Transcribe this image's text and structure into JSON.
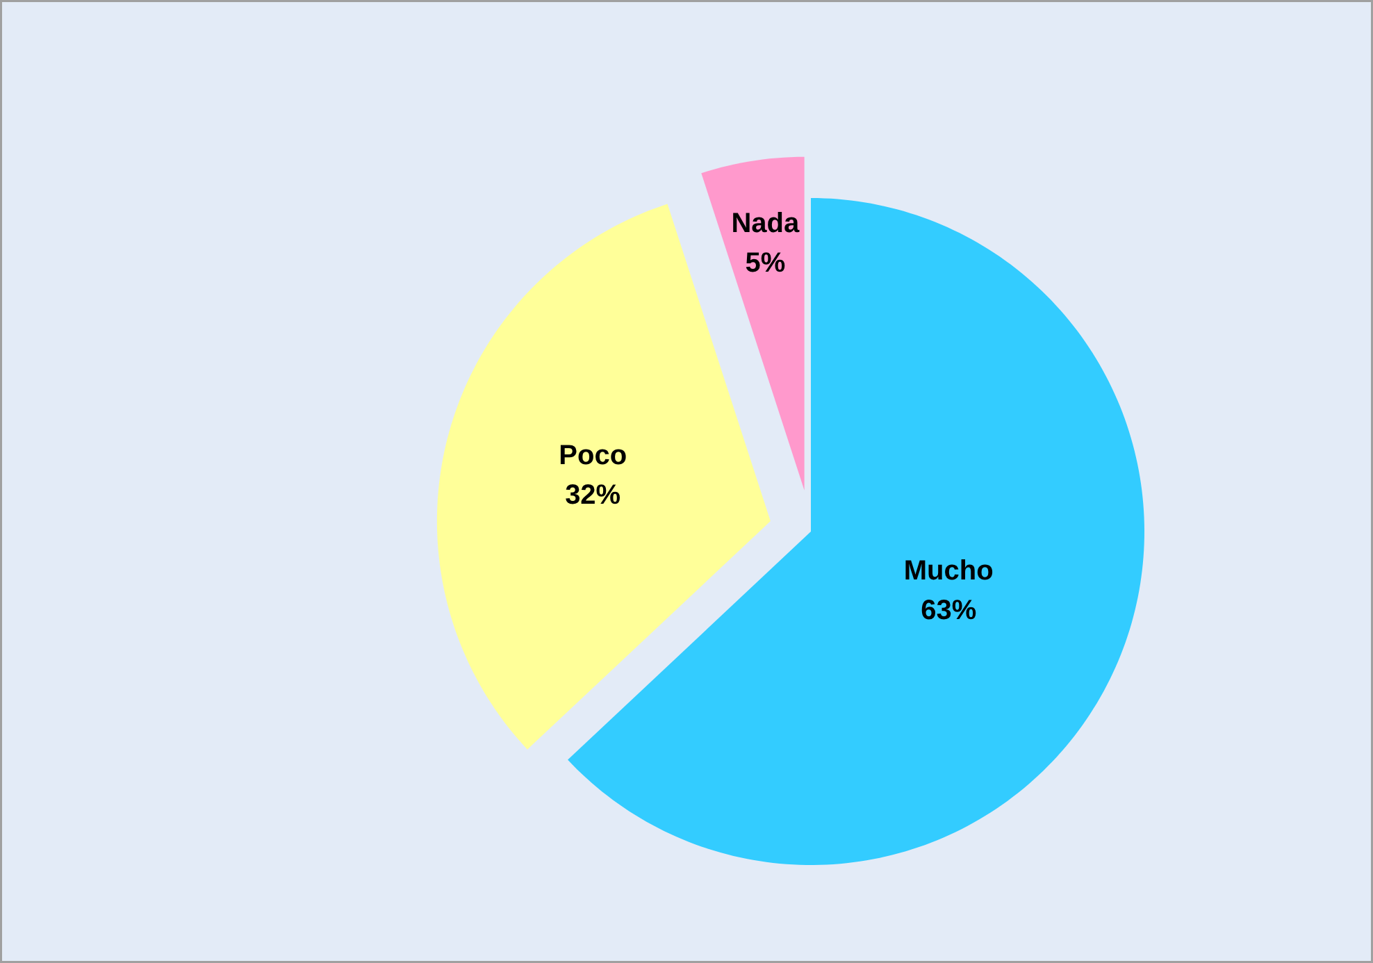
{
  "chart_data": {
    "type": "pie",
    "categories": [
      "Mucho",
      "Poco",
      "Nada"
    ],
    "values": [
      63,
      32,
      5
    ],
    "colors": [
      "#33ccff",
      "#ffff99",
      "#ff99cc"
    ],
    "value_labels": [
      "63%",
      "32%",
      "5%"
    ]
  }
}
